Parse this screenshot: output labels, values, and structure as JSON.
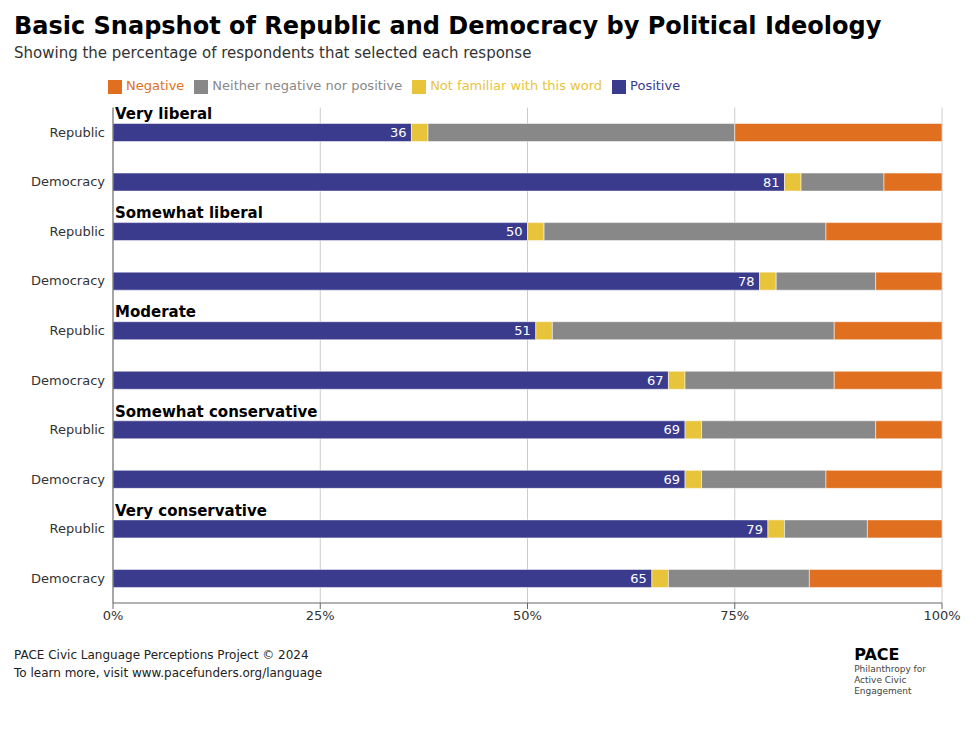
{
  "chart_data": {
    "type": "bar",
    "orientation": "horizontal",
    "stacked": true,
    "title": "Basic Snapshot of Republic and Democracy by Political Ideology",
    "subtitle": "Showing the percentage of respondents that selected each response",
    "groups": [
      "Very liberal",
      "Somewhat liberal",
      "Moderate",
      "Somewhat conservative",
      "Very conservative"
    ],
    "categories": [
      "Republic",
      "Democracy",
      "Republic",
      "Democracy",
      "Republic",
      "Democracy",
      "Republic",
      "Democracy",
      "Republic",
      "Democracy"
    ],
    "series": [
      {
        "name": "Positive",
        "color": "#3b3b8e",
        "data_labels": true,
        "values": [
          36,
          81,
          50,
          78,
          51,
          67,
          69,
          69,
          79,
          65
        ]
      },
      {
        "name": "Not familiar with this word",
        "color": "#e8c43a",
        "values": [
          2,
          2,
          2,
          2,
          2,
          2,
          2,
          2,
          2,
          2
        ]
      },
      {
        "name": "Neither negative nor positive",
        "color": "#888888",
        "values": [
          37,
          10,
          34,
          12,
          34,
          18,
          21,
          15,
          10,
          17
        ]
      },
      {
        "name": "Negative",
        "color": "#e07020",
        "values": [
          25,
          7,
          14,
          8,
          13,
          13,
          8,
          14,
          9,
          16
        ]
      }
    ],
    "xlim": [
      0,
      100
    ],
    "xticks": [
      {
        "value": 0,
        "label": "0%"
      },
      {
        "value": 25,
        "label": "25%"
      },
      {
        "value": 50,
        "label": "50%"
      },
      {
        "value": 75,
        "label": "75%"
      },
      {
        "value": 100,
        "label": "100%"
      }
    ],
    "grid": true,
    "legend": "upper left",
    "footer": "PACE Civic Language Perceptions Project © 2024\nTo learn more, visit www.pacefunders.org/language",
    "annotations": [
      "PACE",
      "Philanthropy for",
      "Active Civic",
      "Engagement"
    ]
  }
}
